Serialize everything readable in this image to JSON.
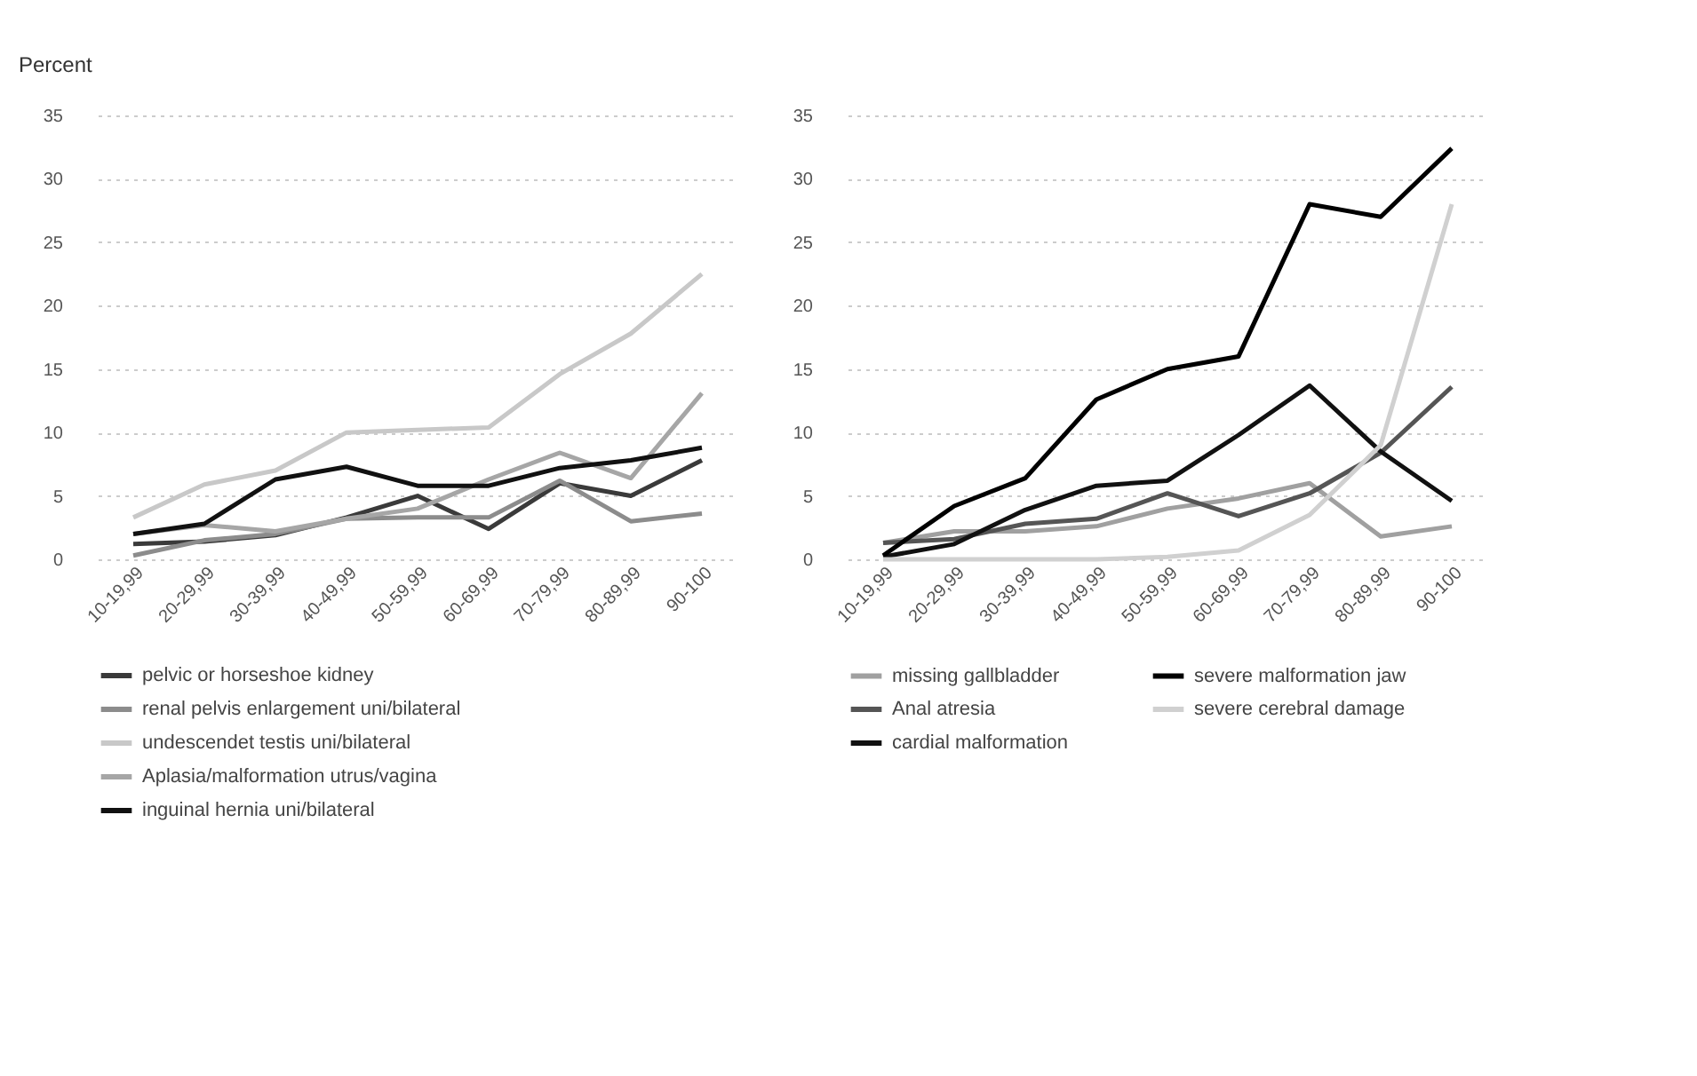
{
  "chart_data": [
    {
      "type": "line",
      "ylabel": "Percent",
      "categories": [
        "10-19,99",
        "20-29,99",
        "30-39,99",
        "40-49,99",
        "50-59,99",
        "60-69,99",
        "70-79,99",
        "80-89,99",
        "90-100"
      ],
      "ylim": [
        0,
        35
      ],
      "yticks": [
        0,
        5,
        10,
        15,
        20,
        25,
        30,
        35
      ],
      "grid": "y",
      "legend": "bottom",
      "marker": "none",
      "series": [
        {
          "name": "pelvic or horseshoe kidney",
          "color": "#3a3a3a",
          "values": [
            1.2,
            1.4,
            1.9,
            3.3,
            5.0,
            2.4,
            6.0,
            5.0,
            7.8
          ]
        },
        {
          "name": "renal pelvis enlargement uni/bilateral",
          "color": "#8c8c8c",
          "values": [
            0.3,
            1.5,
            2.0,
            3.2,
            3.3,
            3.3,
            6.2,
            3.0,
            3.6
          ]
        },
        {
          "name": "undescendet testis uni/bilateral",
          "color": "#c8c8c8",
          "values": [
            3.3,
            5.9,
            7.0,
            10.0,
            10.2,
            10.4,
            14.6,
            17.8,
            22.5
          ]
        },
        {
          "name": "Aplasia/malformation utrus/vagina",
          "color": "#a6a6a6",
          "values": [
            2.0,
            2.7,
            2.2,
            3.2,
            4.0,
            6.3,
            8.4,
            6.4,
            13.1
          ]
        },
        {
          "name": "inguinal hernia uni/bilateral",
          "color": "#111111",
          "values": [
            2.0,
            2.8,
            6.3,
            7.3,
            5.8,
            5.8,
            7.2,
            7.8,
            8.8
          ]
        }
      ]
    },
    {
      "type": "line",
      "categories": [
        "10-19,99",
        "20-29,99",
        "30-39,99",
        "40-49,99",
        "50-59,99",
        "60-69,99",
        "70-79,99",
        "80-89,99",
        "90-100"
      ],
      "ylim": [
        0,
        35
      ],
      "yticks": [
        0,
        5,
        10,
        15,
        20,
        25,
        30,
        35
      ],
      "grid": "y",
      "legend": "bottom",
      "marker": "none",
      "series": [
        {
          "name": "missing gallbladder",
          "color": "#a0a0a0",
          "values": [
            1.3,
            2.2,
            2.2,
            2.6,
            4.0,
            4.8,
            6.0,
            1.8,
            2.6
          ]
        },
        {
          "name": "Anal atresia",
          "color": "#555555",
          "values": [
            1.3,
            1.6,
            2.8,
            3.2,
            5.2,
            3.4,
            5.2,
            8.4,
            13.6
          ]
        },
        {
          "name": "cardial malformation",
          "color": "#111111",
          "values": [
            0.2,
            1.2,
            3.9,
            5.8,
            6.2,
            9.8,
            13.7,
            8.5,
            4.6
          ]
        },
        {
          "name": "severe malformation jaw",
          "color": "#000000",
          "values": [
            0.3,
            4.2,
            6.4,
            12.6,
            15.0,
            16.0,
            28.0,
            27.0,
            32.4
          ]
        },
        {
          "name": "severe cerebral damage",
          "color": "#d0d0d0",
          "values": [
            0.0,
            0.0,
            0.0,
            0.0,
            0.2,
            0.7,
            3.5,
            9.0,
            28.0
          ]
        }
      ]
    }
  ]
}
